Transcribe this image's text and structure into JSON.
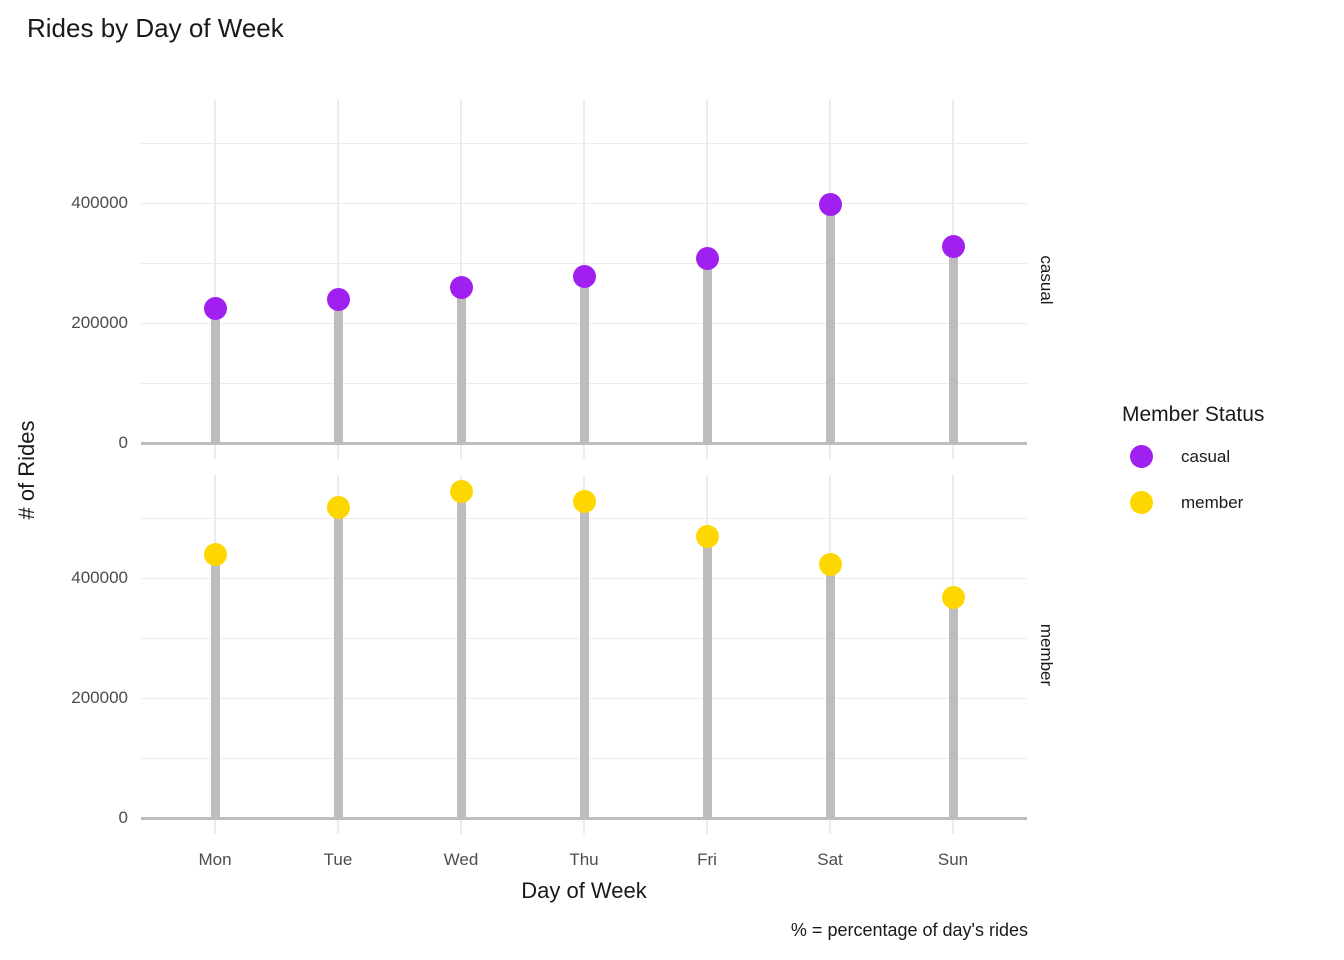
{
  "title": "Rides by Day of Week",
  "y_axis_title": "# of Rides",
  "x_axis_title": "Day of Week",
  "caption": "% = percentage of day's rides",
  "legend": {
    "title": "Member Status",
    "items": [
      {
        "label": "casual",
        "color": "#A020F0"
      },
      {
        "label": "member",
        "color": "#FFD700"
      }
    ]
  },
  "facet_labels": [
    "casual",
    "member"
  ],
  "chart_data": {
    "type": "lollipop (point + stem), faceted rows by member status",
    "categories": [
      "Mon",
      "Tue",
      "Wed",
      "Thu",
      "Fri",
      "Sat",
      "Sun"
    ],
    "series": [
      {
        "name": "casual",
        "color": "#A020F0",
        "values": [
          225000,
          240000,
          259000,
          277000,
          308000,
          398000,
          327000
        ]
      },
      {
        "name": "member",
        "color": "#FFD700",
        "values": [
          440000,
          517000,
          545000,
          528000,
          470000,
          423000,
          368000
        ]
      }
    ],
    "title": "Rides by Day of Week",
    "xlabel": "Day of Week",
    "ylabel": "# of Rides",
    "ylim": [
      0,
      560000
    ],
    "y_major_ticks": [
      0,
      200000,
      400000
    ],
    "y_minor_gridlines": [
      100000,
      300000,
      500000
    ],
    "grid": true,
    "legend_position": "right",
    "stem_color": "#bdbdbd",
    "gridline_color": "#ececec",
    "axis_text_color": "#4d4d4d"
  }
}
